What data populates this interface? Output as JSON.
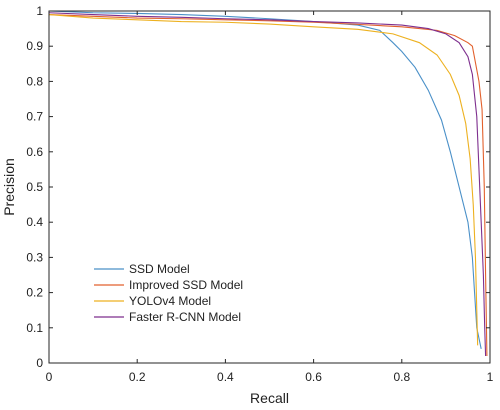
{
  "chart_data": {
    "type": "line",
    "title": "",
    "xlabel": "Recall",
    "ylabel": "Precision",
    "xlim": [
      0,
      1
    ],
    "ylim": [
      0,
      1
    ],
    "x_ticks": [
      "0",
      "0.2",
      "0.4",
      "0.6",
      "0.8",
      "1"
    ],
    "y_ticks": [
      "0",
      "0.1",
      "0.2",
      "0.3",
      "0.4",
      "0.5",
      "0.6",
      "0.7",
      "0.8",
      "0.9",
      "1"
    ],
    "grid": false,
    "legend_position": "lower-left",
    "series": [
      {
        "name": "SSD Model",
        "color": "#4A90C8",
        "points": [
          [
            0,
            1
          ],
          [
            0.1,
            0.995
          ],
          [
            0.2,
            0.993
          ],
          [
            0.3,
            0.99
          ],
          [
            0.4,
            0.985
          ],
          [
            0.5,
            0.978
          ],
          [
            0.6,
            0.97
          ],
          [
            0.7,
            0.96
          ],
          [
            0.75,
            0.945
          ],
          [
            0.78,
            0.91
          ],
          [
            0.8,
            0.885
          ],
          [
            0.83,
            0.84
          ],
          [
            0.86,
            0.775
          ],
          [
            0.89,
            0.69
          ],
          [
            0.91,
            0.6
          ],
          [
            0.93,
            0.5
          ],
          [
            0.95,
            0.4
          ],
          [
            0.96,
            0.3
          ],
          [
            0.965,
            0.2
          ],
          [
            0.97,
            0.1
          ],
          [
            0.98,
            0.04
          ]
        ]
      },
      {
        "name": "Improved SSD Model",
        "color": "#E2612D",
        "points": [
          [
            0,
            0.99
          ],
          [
            0.1,
            0.985
          ],
          [
            0.2,
            0.98
          ],
          [
            0.3,
            0.978
          ],
          [
            0.4,
            0.975
          ],
          [
            0.5,
            0.972
          ],
          [
            0.6,
            0.968
          ],
          [
            0.7,
            0.962
          ],
          [
            0.8,
            0.955
          ],
          [
            0.88,
            0.945
          ],
          [
            0.92,
            0.93
          ],
          [
            0.95,
            0.91
          ],
          [
            0.96,
            0.9
          ],
          [
            0.975,
            0.8
          ],
          [
            0.982,
            0.72
          ],
          [
            0.987,
            0.5
          ],
          [
            0.99,
            0.25
          ],
          [
            0.992,
            0.1
          ],
          [
            0.993,
            0.02
          ]
        ]
      },
      {
        "name": "YOLOv4 Model",
        "color": "#EDB120",
        "points": [
          [
            0,
            0.99
          ],
          [
            0.1,
            0.98
          ],
          [
            0.2,
            0.975
          ],
          [
            0.3,
            0.97
          ],
          [
            0.4,
            0.968
          ],
          [
            0.5,
            0.963
          ],
          [
            0.6,
            0.955
          ],
          [
            0.7,
            0.948
          ],
          [
            0.78,
            0.935
          ],
          [
            0.84,
            0.91
          ],
          [
            0.88,
            0.875
          ],
          [
            0.91,
            0.82
          ],
          [
            0.93,
            0.76
          ],
          [
            0.945,
            0.68
          ],
          [
            0.955,
            0.58
          ],
          [
            0.962,
            0.45
          ],
          [
            0.967,
            0.3
          ],
          [
            0.97,
            0.15
          ],
          [
            0.972,
            0.05
          ]
        ]
      },
      {
        "name": "Faster R-CNN Model",
        "color": "#7E2F8E",
        "points": [
          [
            0,
            0.995
          ],
          [
            0.1,
            0.99
          ],
          [
            0.2,
            0.985
          ],
          [
            0.3,
            0.982
          ],
          [
            0.4,
            0.978
          ],
          [
            0.5,
            0.975
          ],
          [
            0.6,
            0.97
          ],
          [
            0.7,
            0.966
          ],
          [
            0.8,
            0.96
          ],
          [
            0.86,
            0.95
          ],
          [
            0.9,
            0.935
          ],
          [
            0.93,
            0.91
          ],
          [
            0.95,
            0.87
          ],
          [
            0.96,
            0.82
          ],
          [
            0.97,
            0.7
          ],
          [
            0.975,
            0.55
          ],
          [
            0.98,
            0.4
          ],
          [
            0.985,
            0.25
          ],
          [
            0.988,
            0.1
          ],
          [
            0.99,
            0.02
          ]
        ]
      }
    ]
  }
}
